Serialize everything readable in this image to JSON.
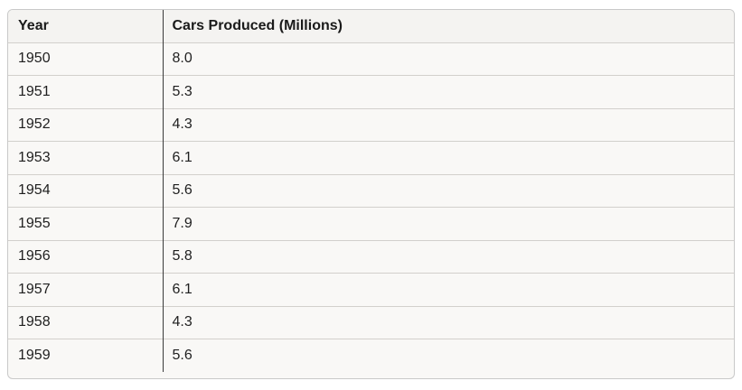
{
  "table": {
    "headers": {
      "year": "Year",
      "cars": "Cars Produced (Millions)"
    },
    "rows": [
      {
        "year": "1950",
        "cars": "8.0"
      },
      {
        "year": "1951",
        "cars": "5.3"
      },
      {
        "year": "1952",
        "cars": "4.3"
      },
      {
        "year": "1953",
        "cars": "6.1"
      },
      {
        "year": "1954",
        "cars": "5.6"
      },
      {
        "year": "1955",
        "cars": "7.9"
      },
      {
        "year": "1956",
        "cars": "5.8"
      },
      {
        "year": "1957",
        "cars": "6.1"
      },
      {
        "year": "1958",
        "cars": "4.3"
      },
      {
        "year": "1959",
        "cars": "5.6"
      }
    ]
  }
}
